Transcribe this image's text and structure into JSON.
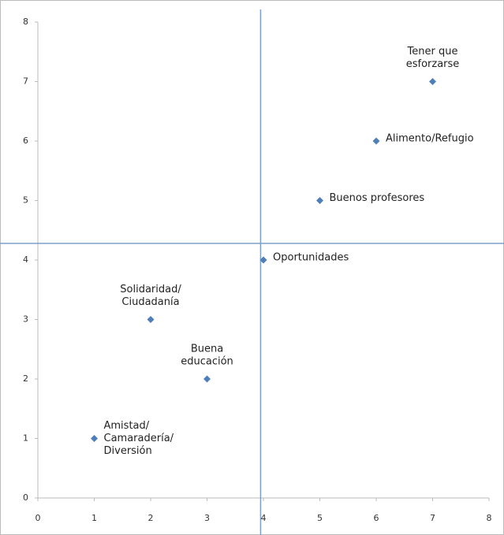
{
  "chart_data": {
    "type": "scatter",
    "x": [
      1,
      2,
      3,
      4,
      5,
      6,
      7
    ],
    "values": [
      1,
      3,
      2,
      4,
      5,
      6,
      7
    ],
    "point_labels": [
      [
        "Amistad/",
        "Camaradería/",
        "Diversión"
      ],
      [
        "Solidaridad/",
        "Ciudadanía"
      ],
      [
        "Buena",
        "educación"
      ],
      [
        "Oportunidades"
      ],
      [
        "Buenos profesores"
      ],
      [
        "Alimento/Refugio"
      ],
      [
        "Tener que",
        "esforzarse"
      ]
    ],
    "color": "#4f7fb8",
    "reference_lines": {
      "x": 3.95,
      "y": 4.28,
      "color": "#7f9fcb"
    },
    "xlim": [
      0,
      8
    ],
    "xticks": [
      0,
      1,
      2,
      3,
      4,
      5,
      6,
      7,
      8
    ],
    "ylim": [
      0,
      8
    ],
    "yticks": [
      0,
      1,
      2,
      3,
      4,
      5,
      6,
      7,
      8
    ]
  }
}
